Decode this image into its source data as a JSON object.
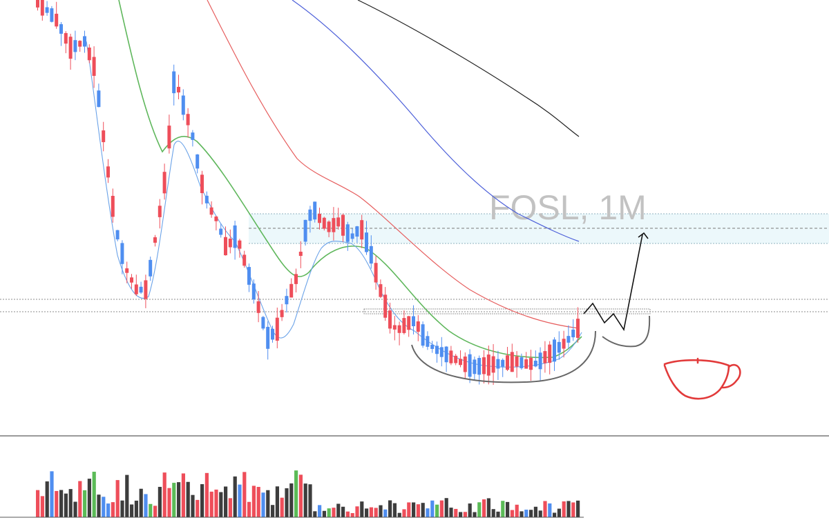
{
  "chart_data": {
    "type": "candlestick",
    "symbol_label": "FOSL, 1M",
    "colors": {
      "up": "#4f8ef0",
      "down": "#ee4e5a",
      "volume_neutral": "#3d3d3d",
      "volume_green": "#5bbb57",
      "ma_fast": "#6aa2e8",
      "ma_green": "#5fb75c",
      "ma_red": "#e65d5d",
      "ma_blue": "#4c5fd9",
      "ma_black": "#222222",
      "zone_fill": "#ecf8fb",
      "cup_outline": "#666666",
      "projection": "#111111",
      "cup_icon": "#e23a3a"
    },
    "reference_lines": [
      "zone-top",
      "zone-mid",
      "zone-bottom",
      "level-upper",
      "level-lower"
    ],
    "annotations": [
      "cup-curve",
      "handle-curve",
      "projection-arrow",
      "teacup-drawing"
    ]
  }
}
